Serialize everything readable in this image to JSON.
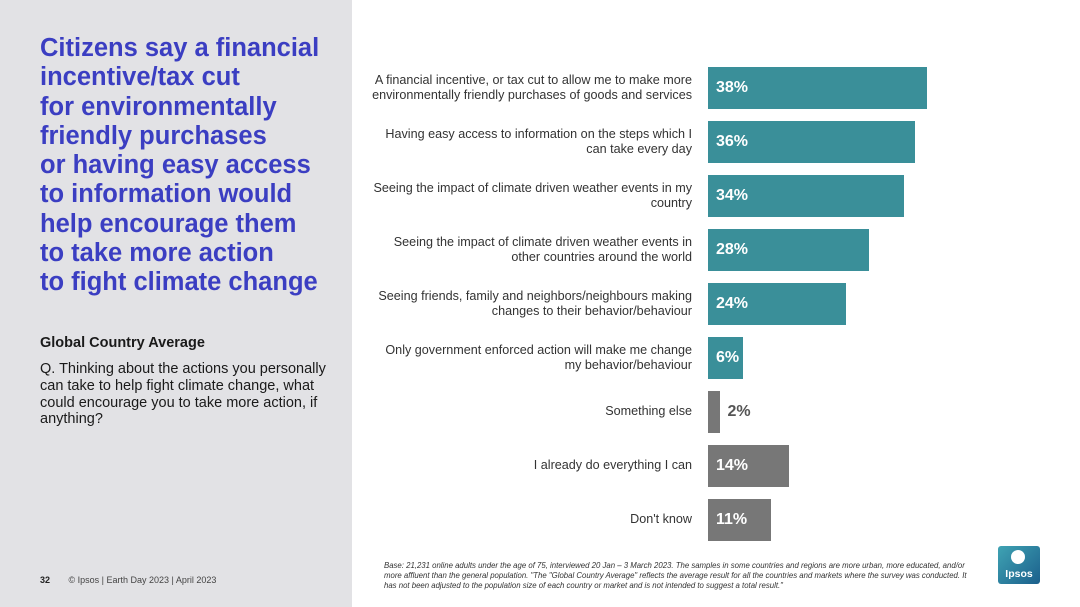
{
  "headline": "Citizens say a financial\nincentive/tax cut\nfor environmentally\nfriendly purchases\nor having easy access\nto information would\nhelp encourage them\nto take more action\nto fight climate change",
  "sub_heading": "Global Country Average",
  "question": "Q. Thinking about the actions you personally can take to help fight climate change, what could encourage you to take more action, if anything?",
  "footer": {
    "page_number": "32",
    "credit": "© Ipsos | Earth Day 2023 | April 2023"
  },
  "base_note": "Base: 21,231 online adults under the age of 75, interviewed 20 Jan – 3 March 2023. The samples in some countries and regions are more urban, more educated, and/or more affluent than the general population. \"The \"Global Country Average\" reflects the average result for all the countries and markets where the survey was conducted. It has not been adjusted to the population size of each country or market and is not intended to suggest a total result.\"",
  "logo_text": "Ipsos",
  "colors": {
    "teal": "#3a8f99",
    "gray": "#777777",
    "headline": "#3b3ec2"
  },
  "chart_data": {
    "type": "bar",
    "orientation": "horizontal",
    "categories": [
      "A financial incentive, or tax cut to allow me to make more environmentally friendly purchases of goods and services",
      "Having easy access to information on the steps which I can take every day",
      "Seeing the impact of climate driven weather events in my country",
      "Seeing the impact of climate driven weather events in other countries around the world",
      "Seeing friends, family and neighbors/neighbours making changes to their behavior/behaviour",
      "Only government enforced action will make me change my behavior/behaviour",
      "Something else",
      "I already do everything I can",
      "Don't know"
    ],
    "values": [
      38,
      36,
      34,
      28,
      24,
      6,
      2,
      14,
      11
    ],
    "value_labels": [
      "38%",
      "36%",
      "34%",
      "28%",
      "24%",
      "6%",
      "2%",
      "14%",
      "11%"
    ],
    "bar_colors": [
      "teal",
      "teal",
      "teal",
      "teal",
      "teal",
      "teal",
      "gray",
      "gray",
      "gray"
    ],
    "xlim": [
      0,
      100
    ],
    "unit": "%"
  }
}
